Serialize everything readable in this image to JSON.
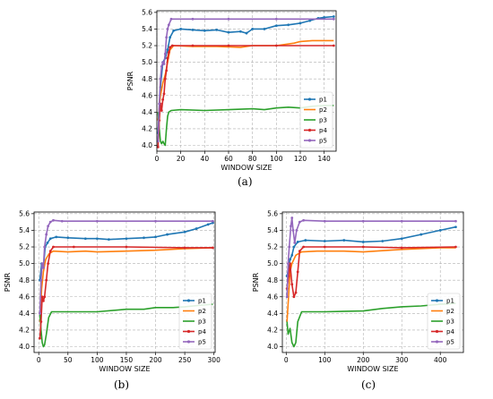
{
  "colors": {
    "p1": "#1f77b4",
    "p2": "#ff7f0e",
    "p3": "#2ca02c",
    "p4": "#d62728",
    "p5": "#9467bd",
    "grid": "#b0b0b0"
  },
  "chart_data": [
    {
      "panel": "(a)",
      "type": "line",
      "xlabel": "WINDOW SIZE",
      "ylabel": "PSNR",
      "xlim": [
        0,
        150
      ],
      "ylim": [
        3.93,
        5.62
      ],
      "xticks": [
        0,
        20,
        40,
        60,
        80,
        100,
        120,
        140
      ],
      "yticks": [
        4.0,
        4.2,
        4.4,
        4.6,
        4.8,
        5.0,
        5.2,
        5.4,
        5.6
      ],
      "grid": true,
      "legend": "bottom-right",
      "series": [
        {
          "name": "p1",
          "markers": true,
          "points": [
            [
              1,
              4.15
            ],
            [
              3,
              4.7
            ],
            [
              5,
              5.0
            ],
            [
              7,
              5.05
            ],
            [
              9,
              5.15
            ],
            [
              11,
              5.3
            ],
            [
              14,
              5.38
            ],
            [
              20,
              5.4
            ],
            [
              30,
              5.39
            ],
            [
              40,
              5.38
            ],
            [
              50,
              5.39
            ],
            [
              60,
              5.36
            ],
            [
              70,
              5.37
            ],
            [
              75,
              5.35
            ],
            [
              80,
              5.4
            ],
            [
              90,
              5.4
            ],
            [
              100,
              5.44
            ],
            [
              110,
              5.45
            ],
            [
              120,
              5.47
            ],
            [
              128,
              5.5
            ],
            [
              135,
              5.53
            ],
            [
              140,
              5.54
            ],
            [
              148,
              5.55
            ]
          ]
        },
        {
          "name": "p2",
          "markers": false,
          "points": [
            [
              1,
              4.3
            ],
            [
              3,
              4.6
            ],
            [
              5,
              4.75
            ],
            [
              7,
              4.85
            ],
            [
              9,
              5.0
            ],
            [
              11,
              5.15
            ],
            [
              14,
              5.2
            ],
            [
              30,
              5.19
            ],
            [
              50,
              5.19
            ],
            [
              70,
              5.18
            ],
            [
              80,
              5.2
            ],
            [
              100,
              5.2
            ],
            [
              115,
              5.23
            ],
            [
              120,
              5.25
            ],
            [
              130,
              5.26
            ],
            [
              148,
              5.26
            ]
          ]
        },
        {
          "name": "p3",
          "markers": false,
          "points": [
            [
              1,
              4.4
            ],
            [
              2,
              4.2
            ],
            [
              3,
              4.05
            ],
            [
              4,
              4.02
            ],
            [
              5,
              4.05
            ],
            [
              6,
              4.02
            ],
            [
              7,
              4.0
            ],
            [
              8,
              4.2
            ],
            [
              9,
              4.35
            ],
            [
              10,
              4.4
            ],
            [
              12,
              4.42
            ],
            [
              20,
              4.43
            ],
            [
              40,
              4.42
            ],
            [
              60,
              4.43
            ],
            [
              80,
              4.44
            ],
            [
              90,
              4.43
            ],
            [
              100,
              4.45
            ],
            [
              110,
              4.46
            ],
            [
              120,
              4.45
            ],
            [
              130,
              4.47
            ],
            [
              140,
              4.48
            ],
            [
              148,
              4.48
            ]
          ]
        },
        {
          "name": "p4",
          "markers": true,
          "points": [
            [
              1,
              3.98
            ],
            [
              2,
              4.3
            ],
            [
              3,
              4.5
            ],
            [
              4,
              4.42
            ],
            [
              5,
              4.55
            ],
            [
              6,
              4.62
            ],
            [
              7,
              4.8
            ],
            [
              8,
              4.9
            ],
            [
              9,
              5.05
            ],
            [
              10,
              5.12
            ],
            [
              11,
              5.18
            ],
            [
              13,
              5.2
            ],
            [
              30,
              5.2
            ],
            [
              60,
              5.2
            ],
            [
              100,
              5.2
            ],
            [
              148,
              5.2
            ]
          ]
        },
        {
          "name": "p5",
          "markers": true,
          "points": [
            [
              1,
              4.05
            ],
            [
              2,
              4.5
            ],
            [
              3,
              4.8
            ],
            [
              4,
              4.95
            ],
            [
              5,
              5.0
            ],
            [
              6,
              4.98
            ],
            [
              7,
              5.1
            ],
            [
              8,
              5.3
            ],
            [
              9,
              5.4
            ],
            [
              10,
              5.45
            ],
            [
              12,
              5.52
            ],
            [
              30,
              5.52
            ],
            [
              60,
              5.52
            ],
            [
              100,
              5.52
            ],
            [
              148,
              5.52
            ]
          ]
        }
      ]
    },
    {
      "panel": "(b)",
      "type": "line",
      "xlabel": "WINDOW SIZE",
      "ylabel": "PSNR",
      "xlim": [
        -8,
        302
      ],
      "ylim": [
        3.93,
        5.62
      ],
      "xticks": [
        0,
        50,
        100,
        150,
        200,
        250,
        300
      ],
      "yticks": [
        4.0,
        4.2,
        4.4,
        4.6,
        4.8,
        5.0,
        5.2,
        5.4,
        5.6
      ],
      "grid": true,
      "legend": "bottom-right",
      "series": [
        {
          "name": "p1",
          "markers": true,
          "points": [
            [
              2,
              4.8
            ],
            [
              5,
              5.0
            ],
            [
              8,
              4.95
            ],
            [
              11,
              5.2
            ],
            [
              15,
              5.25
            ],
            [
              20,
              5.3
            ],
            [
              30,
              5.32
            ],
            [
              50,
              5.31
            ],
            [
              80,
              5.3
            ],
            [
              100,
              5.3
            ],
            [
              120,
              5.29
            ],
            [
              150,
              5.3
            ],
            [
              180,
              5.31
            ],
            [
              200,
              5.32
            ],
            [
              220,
              5.35
            ],
            [
              250,
              5.38
            ],
            [
              270,
              5.42
            ],
            [
              290,
              5.47
            ],
            [
              298,
              5.49
            ]
          ]
        },
        {
          "name": "p2",
          "markers": false,
          "points": [
            [
              2,
              4.3
            ],
            [
              5,
              4.7
            ],
            [
              8,
              4.9
            ],
            [
              12,
              5.05
            ],
            [
              18,
              5.12
            ],
            [
              25,
              5.15
            ],
            [
              50,
              5.14
            ],
            [
              80,
              5.15
            ],
            [
              100,
              5.14
            ],
            [
              150,
              5.15
            ],
            [
              200,
              5.16
            ],
            [
              250,
              5.18
            ],
            [
              298,
              5.19
            ]
          ]
        },
        {
          "name": "p3",
          "markers": false,
          "points": [
            [
              2,
              4.4
            ],
            [
              4,
              4.2
            ],
            [
              6,
              4.05
            ],
            [
              8,
              4.0
            ],
            [
              10,
              4.02
            ],
            [
              13,
              4.15
            ],
            [
              17,
              4.35
            ],
            [
              22,
              4.42
            ],
            [
              50,
              4.42
            ],
            [
              100,
              4.42
            ],
            [
              150,
              4.45
            ],
            [
              180,
              4.45
            ],
            [
              200,
              4.47
            ],
            [
              230,
              4.47
            ],
            [
              250,
              4.48
            ],
            [
              280,
              4.5
            ],
            [
              298,
              4.51
            ]
          ]
        },
        {
          "name": "p4",
          "markers": true,
          "points": [
            [
              2,
              4.1
            ],
            [
              4,
              4.3
            ],
            [
              6,
              4.6
            ],
            [
              8,
              4.55
            ],
            [
              10,
              4.6
            ],
            [
              13,
              4.8
            ],
            [
              16,
              5.0
            ],
            [
              20,
              5.15
            ],
            [
              25,
              5.2
            ],
            [
              60,
              5.2
            ],
            [
              150,
              5.2
            ],
            [
              250,
              5.19
            ],
            [
              298,
              5.19
            ]
          ]
        },
        {
          "name": "p5",
          "markers": true,
          "points": [
            [
              2,
              4.4
            ],
            [
              4,
              4.8
            ],
            [
              6,
              5.0
            ],
            [
              8,
              4.95
            ],
            [
              10,
              5.2
            ],
            [
              13,
              5.35
            ],
            [
              16,
              5.45
            ],
            [
              20,
              5.5
            ],
            [
              25,
              5.52
            ],
            [
              40,
              5.51
            ],
            [
              100,
              5.51
            ],
            [
              200,
              5.51
            ],
            [
              298,
              5.51
            ]
          ]
        }
      ]
    },
    {
      "panel": "(c)",
      "type": "line",
      "xlabel": "WINDOW SIZE",
      "ylabel": "PSNR",
      "xlim": [
        -10,
        460
      ],
      "ylim": [
        3.93,
        5.62
      ],
      "xticks": [
        0,
        100,
        200,
        300,
        400
      ],
      "yticks": [
        4.0,
        4.2,
        4.4,
        4.6,
        4.8,
        5.0,
        5.2,
        5.4,
        5.6
      ],
      "grid": true,
      "legend": "bottom-right",
      "series": [
        {
          "name": "p1",
          "markers": true,
          "points": [
            [
              2,
              4.85
            ],
            [
              6,
              4.95
            ],
            [
              10,
              5.05
            ],
            [
              15,
              5.1
            ],
            [
              20,
              5.2
            ],
            [
              30,
              5.26
            ],
            [
              50,
              5.28
            ],
            [
              100,
              5.27
            ],
            [
              150,
              5.28
            ],
            [
              200,
              5.26
            ],
            [
              250,
              5.27
            ],
            [
              300,
              5.3
            ],
            [
              350,
              5.35
            ],
            [
              400,
              5.4
            ],
            [
              440,
              5.44
            ]
          ]
        },
        {
          "name": "p2",
          "markers": false,
          "points": [
            [
              2,
              4.3
            ],
            [
              6,
              4.6
            ],
            [
              10,
              4.9
            ],
            [
              15,
              5.0
            ],
            [
              25,
              5.1
            ],
            [
              40,
              5.14
            ],
            [
              80,
              5.15
            ],
            [
              150,
              5.15
            ],
            [
              200,
              5.14
            ],
            [
              300,
              5.17
            ],
            [
              400,
              5.19
            ],
            [
              440,
              5.19
            ]
          ]
        },
        {
          "name": "p3",
          "markers": false,
          "points": [
            [
              2,
              4.3
            ],
            [
              5,
              4.15
            ],
            [
              10,
              4.22
            ],
            [
              15,
              4.05
            ],
            [
              20,
              4.0
            ],
            [
              25,
              4.05
            ],
            [
              30,
              4.3
            ],
            [
              40,
              4.42
            ],
            [
              100,
              4.42
            ],
            [
              200,
              4.43
            ],
            [
              250,
              4.46
            ],
            [
              300,
              4.48
            ],
            [
              350,
              4.49
            ],
            [
              400,
              4.51
            ],
            [
              440,
              4.52
            ]
          ]
        },
        {
          "name": "p4",
          "markers": true,
          "points": [
            [
              2,
              4.7
            ],
            [
              6,
              4.85
            ],
            [
              10,
              5.0
            ],
            [
              15,
              4.75
            ],
            [
              20,
              4.6
            ],
            [
              25,
              4.65
            ],
            [
              30,
              4.9
            ],
            [
              35,
              5.15
            ],
            [
              45,
              5.2
            ],
            [
              100,
              5.2
            ],
            [
              200,
              5.2
            ],
            [
              300,
              5.19
            ],
            [
              440,
              5.2
            ]
          ]
        },
        {
          "name": "p5",
          "markers": true,
          "points": [
            [
              2,
              4.6
            ],
            [
              5,
              5.0
            ],
            [
              8,
              5.2
            ],
            [
              12,
              5.45
            ],
            [
              15,
              5.55
            ],
            [
              18,
              5.4
            ],
            [
              22,
              5.25
            ],
            [
              27,
              5.4
            ],
            [
              35,
              5.5
            ],
            [
              45,
              5.52
            ],
            [
              100,
              5.51
            ],
            [
              200,
              5.51
            ],
            [
              300,
              5.51
            ],
            [
              440,
              5.51
            ]
          ]
        }
      ]
    }
  ]
}
